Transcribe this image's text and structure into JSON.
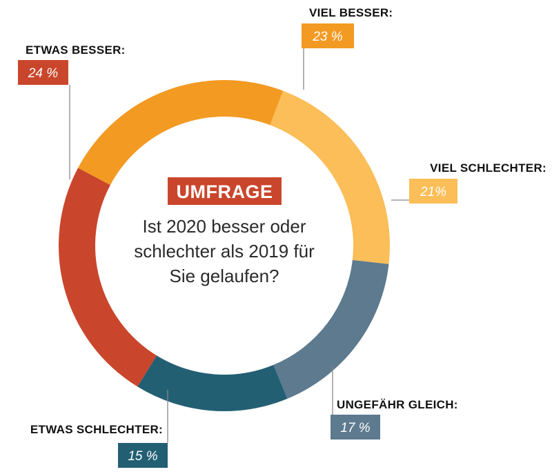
{
  "chart_data": {
    "type": "pie",
    "variant": "donut",
    "title": "",
    "center": {
      "badge": "UMFRAGE",
      "question_lines": [
        "Ist 2020 besser oder",
        "schlechter als 2019 für",
        "Sie gelaufen?"
      ]
    },
    "slices": [
      {
        "name": "VIEL BESSER:",
        "value": 23,
        "label": "23 %",
        "color": "#f39a22"
      },
      {
        "name": "VIEL SCHLECHTER:",
        "value": 21,
        "label": "21%",
        "color": "#fbbe58"
      },
      {
        "name": "UNGEFÄHR GLEICH:",
        "value": 17,
        "label": "17 %",
        "color": "#5d7a8e"
      },
      {
        "name": "ETWAS SCHLECHTER:",
        "value": 15,
        "label": "15 %",
        "color": "#235f73"
      },
      {
        "name": "ETWAS BESSER:",
        "value": 24,
        "label": "24 %",
        "color": "#c9462c"
      }
    ],
    "colors": {
      "badge": "#c9462c",
      "leader": "#888888"
    }
  }
}
